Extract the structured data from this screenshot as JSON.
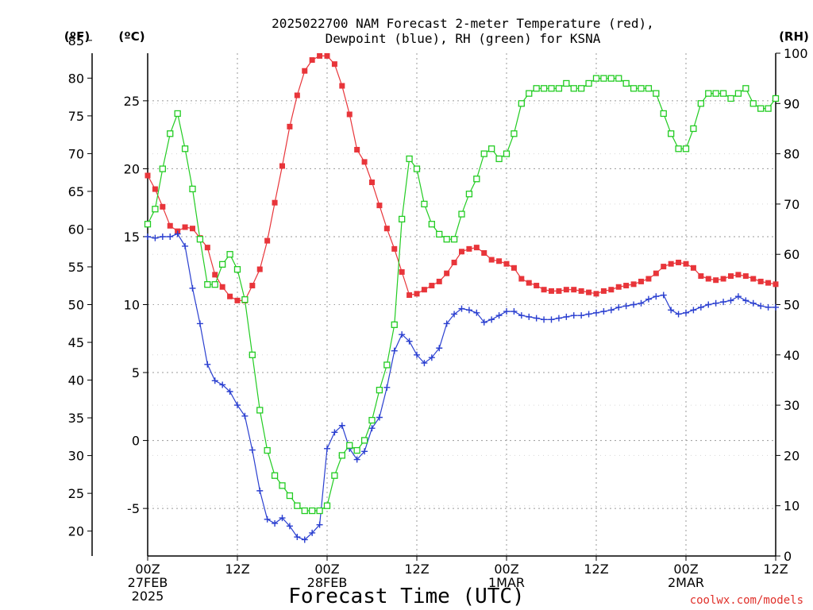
{
  "chart_data": {
    "type": "line",
    "title_line1": "2025022700 NAM Forecast 2-meter Temperature (red),",
    "title_line2": "Dewpoint (blue), RH (green) for KSNA",
    "xlabel": "Forecast Time (UTC)",
    "credit": "coolwx.com/models",
    "unit_labels": {
      "fahrenheit": "(ºF)",
      "celsius": "(ºC)",
      "rh": "(RH)"
    },
    "x_unit": "forecast hour from 2025-02-27 00Z",
    "xlim": [
      0,
      84
    ],
    "x_ticks": [
      {
        "hour": 0,
        "line1": "00Z",
        "line2": "27FEB",
        "line3": "2025"
      },
      {
        "hour": 12,
        "line1": "12Z",
        "line2": "",
        "line3": ""
      },
      {
        "hour": 24,
        "line1": "00Z",
        "line2": "28FEB",
        "line3": ""
      },
      {
        "hour": 36,
        "line1": "12Z",
        "line2": "",
        "line3": ""
      },
      {
        "hour": 48,
        "line1": "00Z",
        "line2": "1MAR",
        "line3": ""
      },
      {
        "hour": 60,
        "line1": "12Z",
        "line2": "",
        "line3": ""
      },
      {
        "hour": 72,
        "line1": "00Z",
        "line2": "2MAR",
        "line3": ""
      },
      {
        "hour": 84,
        "line1": "12Z",
        "line2": "",
        "line3": ""
      }
    ],
    "celsius_axis": {
      "ylim": [
        -8.5,
        28.5
      ],
      "ticks": [
        "-5",
        "0",
        "5",
        "10",
        "15",
        "20",
        "25"
      ]
    },
    "fahrenheit_axis": {
      "ticks": [
        "20",
        "25",
        "30",
        "35",
        "40",
        "45",
        "50",
        "55",
        "60",
        "65",
        "70",
        "75",
        "80",
        "85"
      ]
    },
    "rh_axis": {
      "ylim": [
        0,
        100
      ],
      "ticks": [
        "0",
        "10",
        "20",
        "30",
        "40",
        "50",
        "60",
        "70",
        "80",
        "90",
        "100"
      ]
    },
    "grid": true,
    "series": [
      {
        "name": "Temperature",
        "color": "#e8353a",
        "marker": "filled-square",
        "axis": "celsius",
        "x": [
          0,
          1,
          2,
          3,
          4,
          5,
          6,
          7,
          8,
          9,
          10,
          11,
          12,
          13,
          14,
          15,
          16,
          17,
          18,
          19,
          20,
          21,
          22,
          23,
          24,
          25,
          26,
          27,
          28,
          29,
          30,
          31,
          32,
          33,
          34,
          35,
          36,
          37,
          38,
          39,
          40,
          41,
          42,
          43,
          44,
          45,
          46,
          47,
          48,
          49,
          50,
          51,
          52,
          53,
          54,
          55,
          56,
          57,
          58,
          59,
          60,
          61,
          62,
          63,
          64,
          65,
          66,
          67,
          68,
          69,
          70,
          71,
          72,
          73,
          74,
          75,
          76,
          77,
          78,
          79,
          80,
          81,
          82,
          83,
          84
        ],
        "y": [
          19.5,
          18.5,
          17.2,
          15.8,
          15.4,
          15.7,
          15.6,
          14.9,
          14.2,
          12.2,
          11.3,
          10.6,
          10.3,
          10.3,
          11.4,
          12.6,
          14.7,
          17.5,
          20.2,
          23.1,
          25.4,
          27.2,
          28.0,
          28.3,
          28.3,
          27.7,
          26.1,
          24.0,
          21.4,
          20.5,
          19.0,
          17.3,
          15.6,
          14.1,
          12.4,
          10.7,
          10.8,
          11.1,
          11.4,
          11.7,
          12.3,
          13.1,
          13.9,
          14.1,
          14.2,
          13.8,
          13.3,
          13.2,
          13.0,
          12.7,
          11.9,
          11.6,
          11.4,
          11.1,
          11.0,
          11.0,
          11.1,
          11.1,
          11.0,
          10.9,
          10.8,
          11.0,
          11.1,
          11.3,
          11.4,
          11.5,
          11.7,
          11.9,
          12.3,
          12.8,
          13.0,
          13.1,
          13.0,
          12.7,
          12.1,
          11.9,
          11.8,
          11.9,
          12.1,
          12.2,
          12.1,
          11.9,
          11.7,
          11.6,
          11.5
        ]
      },
      {
        "name": "Dewpoint",
        "color": "#2a3fd0",
        "marker": "plus",
        "axis": "celsius",
        "x": [
          0,
          1,
          2,
          3,
          4,
          5,
          6,
          7,
          8,
          9,
          10,
          11,
          12,
          13,
          14,
          15,
          16,
          17,
          18,
          19,
          20,
          21,
          22,
          23,
          24,
          25,
          26,
          27,
          28,
          29,
          30,
          31,
          32,
          33,
          34,
          35,
          36,
          37,
          38,
          39,
          40,
          41,
          42,
          43,
          44,
          45,
          46,
          47,
          48,
          49,
          50,
          51,
          52,
          53,
          54,
          55,
          56,
          57,
          58,
          59,
          60,
          61,
          62,
          63,
          64,
          65,
          66,
          67,
          68,
          69,
          70,
          71,
          72,
          73,
          74,
          75,
          76,
          77,
          78,
          79,
          80,
          81,
          82,
          83,
          84
        ],
        "y": [
          15.0,
          14.9,
          15.0,
          15.0,
          15.2,
          14.3,
          11.2,
          8.6,
          5.6,
          4.4,
          4.1,
          3.6,
          2.6,
          1.8,
          -0.7,
          -3.7,
          -5.8,
          -6.1,
          -5.7,
          -6.3,
          -7.1,
          -7.3,
          -6.8,
          -6.2,
          -0.6,
          0.6,
          1.1,
          -0.6,
          -1.4,
          -0.8,
          0.9,
          1.7,
          3.9,
          6.6,
          7.8,
          7.3,
          6.3,
          5.7,
          6.1,
          6.8,
          8.6,
          9.3,
          9.7,
          9.6,
          9.4,
          8.7,
          8.9,
          9.2,
          9.5,
          9.5,
          9.2,
          9.1,
          9.0,
          8.9,
          8.9,
          9.0,
          9.1,
          9.2,
          9.2,
          9.3,
          9.4,
          9.5,
          9.6,
          9.8,
          9.9,
          10.0,
          10.1,
          10.4,
          10.6,
          10.7,
          9.6,
          9.3,
          9.4,
          9.6,
          9.8,
          10.0,
          10.1,
          10.2,
          10.3,
          10.6,
          10.3,
          10.1,
          9.9,
          9.8,
          9.8
        ]
      },
      {
        "name": "RH",
        "color": "#22cc22",
        "marker": "open-square",
        "axis": "rh",
        "x": [
          0,
          1,
          2,
          3,
          4,
          5,
          6,
          7,
          8,
          9,
          10,
          11,
          12,
          13,
          14,
          15,
          16,
          17,
          18,
          19,
          20,
          21,
          22,
          23,
          24,
          25,
          26,
          27,
          28,
          29,
          30,
          31,
          32,
          33,
          34,
          35,
          36,
          37,
          38,
          39,
          40,
          41,
          42,
          43,
          44,
          45,
          46,
          47,
          48,
          49,
          50,
          51,
          52,
          53,
          54,
          55,
          56,
          57,
          58,
          59,
          60,
          61,
          62,
          63,
          64,
          65,
          66,
          67,
          68,
          69,
          70,
          71,
          72,
          73,
          74,
          75,
          76,
          77,
          78,
          79,
          80,
          81,
          82,
          83,
          84
        ],
        "y": [
          66,
          69,
          77,
          84,
          88,
          81,
          73,
          63,
          54,
          54,
          58,
          60,
          57,
          51,
          40,
          29,
          21,
          16,
          14,
          12,
          10,
          9,
          9,
          9,
          10,
          16,
          20,
          22,
          21,
          23,
          27,
          33,
          38,
          46,
          67,
          79,
          77,
          70,
          66,
          64,
          63,
          63,
          68,
          72,
          75,
          80,
          81,
          79,
          80,
          84,
          90,
          92,
          93,
          93,
          93,
          93,
          94,
          93,
          93,
          94,
          95,
          95,
          95,
          95,
          94,
          93,
          93,
          93,
          92,
          88,
          84,
          81,
          81,
          85,
          90,
          92,
          92,
          92,
          91,
          92,
          93,
          90,
          89,
          89,
          91
        ]
      }
    ]
  }
}
